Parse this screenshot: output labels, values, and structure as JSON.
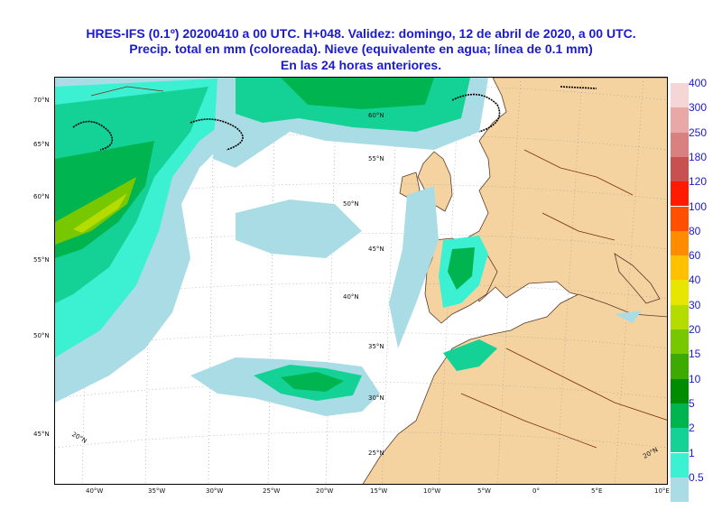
{
  "header": {
    "line1": "HRES-IFS (0.1º) 20200410 a 00 UTC.  H+048. Validez: domingo, 12 de abril de 2020,  a  00 UTC.",
    "line2": "Precip. total en mm (coloreada). Nieve (equivalente en agua; línea de 0.1 mm)",
    "line3": "En las 24 horas anteriores."
  },
  "legend": {
    "items": [
      {
        "label": "400",
        "color": "#f5d5d5"
      },
      {
        "label": "300",
        "color": "#e8a8a8"
      },
      {
        "label": "250",
        "color": "#d98080"
      },
      {
        "label": "180",
        "color": "#c85050"
      },
      {
        "label": "120",
        "color": "#ff1a00"
      },
      {
        "label": "100",
        "color": "#ff5000"
      },
      {
        "label": "80",
        "color": "#ff8c00"
      },
      {
        "label": "60",
        "color": "#ffc000"
      },
      {
        "label": "40",
        "color": "#e6e600"
      },
      {
        "label": "30",
        "color": "#b4dc00"
      },
      {
        "label": "20",
        "color": "#78c800"
      },
      {
        "label": "15",
        "color": "#3caa00"
      },
      {
        "label": "10",
        "color": "#008c00"
      },
      {
        "label": "5",
        "color": "#00b450"
      },
      {
        "label": "2",
        "color": "#14d296"
      },
      {
        "label": "1",
        "color": "#3cf0d2"
      },
      {
        "label": "0.5",
        "color": "#aadce6"
      }
    ]
  },
  "axes": {
    "lon_labels": [
      "40°W",
      "35°W",
      "30°W",
      "25°W",
      "20°W",
      "15°W",
      "10°W",
      "5°W",
      "0°",
      "5°E",
      "10°E"
    ],
    "left_lat_labels": [
      "70°N",
      "65°N",
      "60°N",
      "55°N",
      "50°N",
      "45°N"
    ],
    "inner_lat_labels": [
      "60°N",
      "55°N",
      "50°N",
      "45°N",
      "40°N",
      "35°N",
      "30°N",
      "25°N"
    ],
    "corner_labels": [
      "20°N",
      "20°N"
    ]
  },
  "colors": {
    "ocean": "#ffffff",
    "land": "#f5d3a0",
    "border": "#7a2a10",
    "snow": "#000000",
    "title": "#1a1ad0"
  }
}
